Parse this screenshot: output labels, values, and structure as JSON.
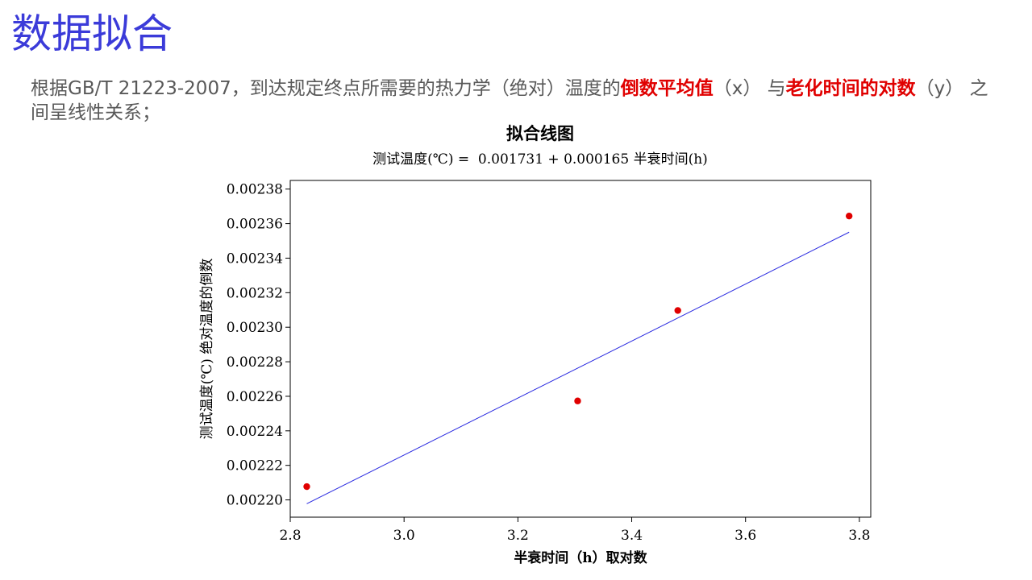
{
  "slide": {
    "title": "数据拟合",
    "desc_prefix": "根据GB/T 21223-2007，到达规定终点所需要的热力学（绝对）温度的",
    "desc_hl1": "倒数平均值",
    "desc_mid": "（x） 与",
    "desc_hl2": "老化时间的对数",
    "desc_suffix": "（y） 之间呈线性关系；"
  },
  "colors": {
    "title": "#3b3bd9",
    "highlight": "#e00000",
    "points": "#e00000",
    "fit_line": "#2b2be0"
  },
  "chart_data": {
    "type": "scatter",
    "title": "拟合线图",
    "subtitle": "测试温度(℃) =  0.001731 + 0.000165 半衰时间(h)",
    "xlabel": "半衰时间（h）取对数",
    "ylabel": "测试温度(℃) 绝对温度的倒数",
    "xlim": [
      2.8,
      3.82
    ],
    "ylim": [
      0.00219,
      0.002385
    ],
    "xticks": [
      2.8,
      3.0,
      3.2,
      3.4,
      3.6,
      3.8
    ],
    "xtick_labels": [
      "2.8",
      "3.0",
      "3.2",
      "3.4",
      "3.6",
      "3.8"
    ],
    "yticks": [
      0.0022,
      0.00222,
      0.00224,
      0.00226,
      0.00228,
      0.0023,
      0.00232,
      0.00234,
      0.00236,
      0.00238
    ],
    "ytick_labels": [
      "0.00220",
      "0.00222",
      "0.00224",
      "0.00226",
      "0.00228",
      "0.00230",
      "0.00232",
      "0.00234",
      "0.00236",
      "0.00238"
    ],
    "points": [
      {
        "x": 2.829,
        "y": 0.0022077
      },
      {
        "x": 3.305,
        "y": 0.0022573
      },
      {
        "x": 3.481,
        "y": 0.0023097
      },
      {
        "x": 3.782,
        "y": 0.0023644
      }
    ],
    "fit": {
      "intercept": 0.001731,
      "slope": 0.000165,
      "x_start": 2.829,
      "x_end": 3.782
    }
  }
}
